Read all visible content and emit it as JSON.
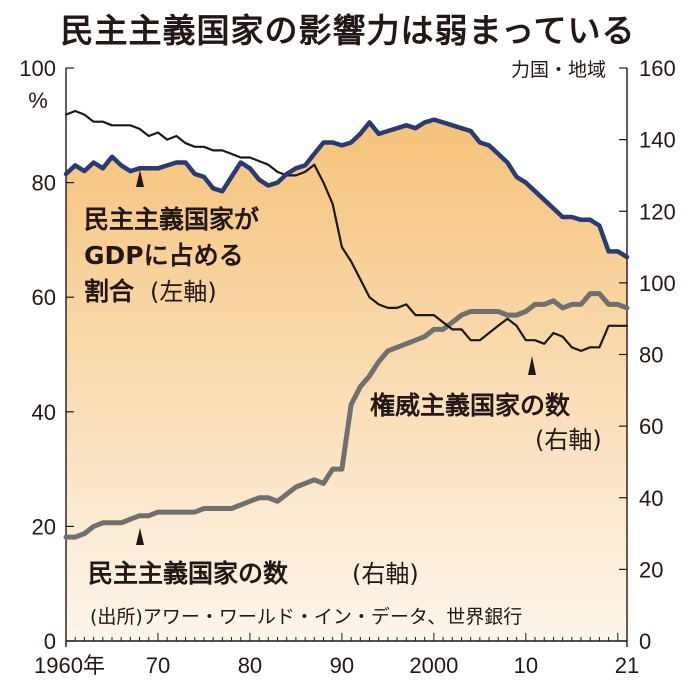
{
  "chart_data": {
    "type": "line",
    "title": "民主主義国家の影響力は弱まっている",
    "left_axis": {
      "unit": "%",
      "ylim": [
        0,
        100
      ],
      "ticks": [
        "0",
        "20",
        "40",
        "60",
        "80",
        "100"
      ]
    },
    "right_axis": {
      "unit": "力国・地域",
      "ylim": [
        0,
        160
      ],
      "ticks": [
        "0",
        "20",
        "40",
        "60",
        "80",
        "100",
        "120",
        "140",
        "160"
      ]
    },
    "xlim": [
      1960,
      2021
    ],
    "x_tick_labels": [
      {
        "x": 1960,
        "label": "1960年"
      },
      {
        "x": 1970,
        "label": "70"
      },
      {
        "x": 1980,
        "label": "80"
      },
      {
        "x": 1990,
        "label": "90"
      },
      {
        "x": 2000,
        "label": "2000"
      },
      {
        "x": 2010,
        "label": "10"
      },
      {
        "x": 2021,
        "label": "21"
      }
    ],
    "series": [
      {
        "name": "民主主義国家がGDPに占める割合(左軸)",
        "axis": "left",
        "color": "#2a3a73",
        "x": [
          1960,
          1961,
          1962,
          1963,
          1964,
          1965,
          1966,
          1967,
          1968,
          1969,
          1970,
          1971,
          1972,
          1973,
          1974,
          1975,
          1976,
          1977,
          1978,
          1979,
          1980,
          1981,
          1982,
          1983,
          1984,
          1985,
          1986,
          1987,
          1988,
          1989,
          1990,
          1991,
          1992,
          1993,
          1994,
          1995,
          1996,
          1997,
          1998,
          1999,
          2000,
          2001,
          2002,
          2003,
          2004,
          2005,
          2006,
          2007,
          2008,
          2009,
          2010,
          2011,
          2012,
          2013,
          2014,
          2015,
          2016,
          2017,
          2018,
          2019,
          2020,
          2021
        ],
        "values": [
          81.5,
          83,
          82,
          83.5,
          82.5,
          84.5,
          83,
          82,
          82.5,
          82.5,
          82.5,
          83,
          83.5,
          83.5,
          81.5,
          81,
          79,
          78.5,
          81,
          83.5,
          82.5,
          80.5,
          79.5,
          80,
          81.5,
          82.5,
          83,
          85,
          87,
          87,
          86.5,
          87,
          88.5,
          90.5,
          88.5,
          89,
          89.5,
          90,
          89.5,
          90.5,
          91,
          90.5,
          90,
          89.5,
          89,
          87,
          86.5,
          85,
          83.5,
          81,
          80,
          78.5,
          77,
          75.5,
          74,
          74,
          73.5,
          73.5,
          72.5,
          68,
          68,
          67
        ]
      },
      {
        "name": "権威主義国家の数(右軸)",
        "axis": "right",
        "color": "#1a1a1a",
        "x": [
          1960,
          1961,
          1962,
          1963,
          1964,
          1965,
          1966,
          1967,
          1968,
          1969,
          1970,
          1971,
          1972,
          1973,
          1974,
          1975,
          1976,
          1977,
          1978,
          1979,
          1980,
          1981,
          1982,
          1983,
          1984,
          1985,
          1986,
          1987,
          1988,
          1989,
          1990,
          1991,
          1992,
          1993,
          1994,
          1995,
          1996,
          1997,
          1998,
          1999,
          2000,
          2001,
          2002,
          2003,
          2004,
          2005,
          2006,
          2007,
          2008,
          2009,
          2010,
          2011,
          2012,
          2013,
          2014,
          2015,
          2016,
          2017,
          2018,
          2019,
          2020,
          2021
        ],
        "values": [
          147,
          148,
          147,
          145,
          145,
          144,
          144,
          144,
          143,
          141,
          142,
          140,
          141,
          139,
          138,
          138,
          137,
          137,
          136,
          135,
          135,
          134,
          133,
          131,
          130,
          130,
          131,
          133,
          128,
          122,
          110,
          106,
          101,
          96,
          94,
          93,
          93,
          94,
          91,
          91,
          91,
          89,
          87,
          87,
          84,
          84,
          86,
          88,
          90,
          88,
          84,
          84,
          83,
          86,
          85,
          82,
          81,
          82,
          82,
          88,
          88,
          88
        ]
      },
      {
        "name": "民主主義国家の数(右軸)",
        "axis": "right",
        "color": "#707070",
        "x": [
          1960,
          1961,
          1962,
          1963,
          1964,
          1965,
          1966,
          1967,
          1968,
          1969,
          1970,
          1971,
          1972,
          1973,
          1974,
          1975,
          1976,
          1977,
          1978,
          1979,
          1980,
          1981,
          1982,
          1983,
          1984,
          1985,
          1986,
          1987,
          1988,
          1989,
          1990,
          1991,
          1992,
          1993,
          1994,
          1995,
          1996,
          1997,
          1998,
          1999,
          2000,
          2001,
          2002,
          2003,
          2004,
          2005,
          2006,
          2007,
          2008,
          2009,
          2010,
          2011,
          2012,
          2013,
          2014,
          2015,
          2016,
          2017,
          2018,
          2019,
          2020,
          2021
        ],
        "values": [
          29,
          29,
          30,
          32,
          33,
          33,
          33,
          34,
          35,
          35,
          36,
          36,
          36,
          36,
          36,
          37,
          37,
          37,
          37,
          38,
          39,
          40,
          40,
          39,
          41,
          43,
          44,
          45,
          44,
          48,
          48,
          66,
          71,
          74,
          78,
          81,
          82,
          83,
          84,
          85,
          87,
          87,
          89,
          91,
          92,
          92,
          92,
          92,
          91,
          91,
          92,
          94,
          94,
          95,
          93,
          94,
          94,
          97,
          97,
          94,
          94,
          93
        ]
      }
    ],
    "annotations": [
      "民主主義国家が",
      "GDPに占める",
      "割合",
      "(左軸)",
      "権威主義国家の数",
      "(右軸)",
      "民主主義国家の数",
      "(右軸)"
    ],
    "source": "(出所)アワー・ワールド・イン・データ、世界銀行",
    "fill_gradient": [
      "#f6c27a",
      "#fdf6ec"
    ]
  }
}
